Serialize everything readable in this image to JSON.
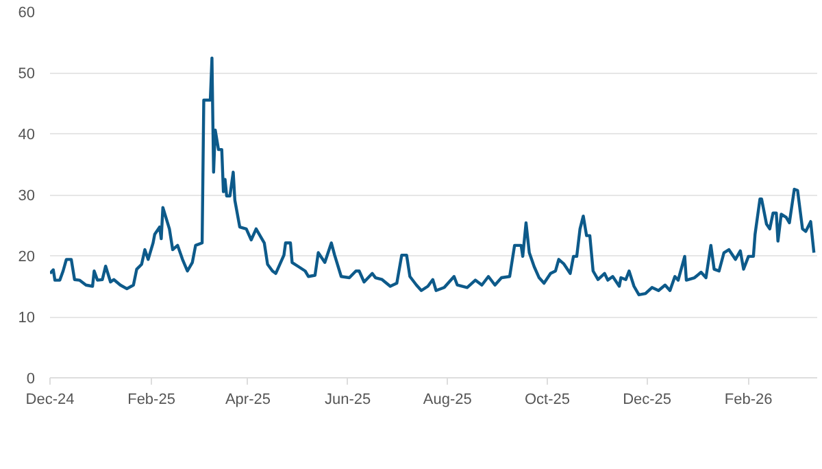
{
  "chart_data": {
    "type": "line",
    "x": [
      "2024-12-01",
      "2024-12-03",
      "2024-12-04",
      "2024-12-07",
      "2024-12-09",
      "2024-12-11",
      "2024-12-14",
      "2024-12-16",
      "2024-12-19",
      "2024-12-23",
      "2024-12-27",
      "2024-12-28",
      "2024-12-30",
      "2025-01-02",
      "2025-01-04",
      "2025-01-07",
      "2025-01-09",
      "2025-01-13",
      "2025-01-17",
      "2025-01-21",
      "2025-01-23",
      "2025-01-26",
      "2025-01-28",
      "2025-01-30",
      "2025-02-02",
      "2025-02-03",
      "2025-02-06",
      "2025-02-07",
      "2025-02-08",
      "2025-02-12",
      "2025-02-14",
      "2025-02-17",
      "2025-02-20",
      "2025-02-23",
      "2025-02-26",
      "2025-02-28",
      "2025-03-04",
      "2025-03-05",
      "2025-03-09",
      "2025-03-10",
      "2025-03-11",
      "2025-03-12",
      "2025-03-14",
      "2025-03-16",
      "2025-03-17",
      "2025-03-18",
      "2025-03-19",
      "2025-03-21",
      "2025-03-23",
      "2025-03-24",
      "2025-03-27",
      "2025-03-31",
      "2025-04-03",
      "2025-04-06",
      "2025-04-11",
      "2025-04-13",
      "2025-04-16",
      "2025-04-18",
      "2025-04-23",
      "2025-04-24",
      "2025-04-27",
      "2025-04-28",
      "2025-05-02",
      "2025-05-06",
      "2025-05-08",
      "2025-05-12",
      "2025-05-14",
      "2025-05-18",
      "2025-05-22",
      "2025-05-24",
      "2025-05-28",
      "2025-06-02",
      "2025-06-06",
      "2025-06-08",
      "2025-06-11",
      "2025-06-16",
      "2025-06-18",
      "2025-06-22",
      "2025-06-27",
      "2025-07-01",
      "2025-07-04",
      "2025-07-07",
      "2025-07-09",
      "2025-07-13",
      "2025-07-16",
      "2025-07-20",
      "2025-07-23",
      "2025-07-25",
      "2025-07-30",
      "2025-08-05",
      "2025-08-07",
      "2025-08-13",
      "2025-08-18",
      "2025-08-22",
      "2025-08-26",
      "2025-08-30",
      "2025-09-03",
      "2025-09-08",
      "2025-09-11",
      "2025-09-15",
      "2025-09-16",
      "2025-09-18",
      "2025-09-20",
      "2025-09-23",
      "2025-09-26",
      "2025-09-29",
      "2025-10-03",
      "2025-10-06",
      "2025-10-08",
      "2025-10-11",
      "2025-10-15",
      "2025-10-17",
      "2025-10-19",
      "2025-10-21",
      "2025-10-23",
      "2025-10-25",
      "2025-10-27",
      "2025-10-29",
      "2025-11-01",
      "2025-11-05",
      "2025-11-07",
      "2025-11-10",
      "2025-11-14",
      "2025-11-15",
      "2025-11-18",
      "2025-11-20",
      "2025-11-23",
      "2025-11-26",
      "2025-11-30",
      "2025-12-04",
      "2025-12-08",
      "2025-12-12",
      "2025-12-15",
      "2025-12-18",
      "2025-12-20",
      "2025-12-24",
      "2025-12-25",
      "2025-12-30",
      "2026-01-03",
      "2026-01-06",
      "2026-01-09",
      "2026-01-11",
      "2026-01-14",
      "2026-01-17",
      "2026-01-20",
      "2026-01-24",
      "2026-01-27",
      "2026-01-29",
      "2026-02-01",
      "2026-02-04",
      "2026-02-05",
      "2026-02-08",
      "2026-02-09",
      "2026-02-12",
      "2026-02-14",
      "2026-02-16",
      "2026-02-18",
      "2026-02-19",
      "2026-02-21",
      "2026-02-24",
      "2026-02-26",
      "2026-03-01",
      "2026-03-03",
      "2026-03-06",
      "2026-03-08",
      "2026-03-11",
      "2026-03-13"
    ],
    "series": [
      {
        "color": "#0d5a8a",
        "values": [
          17.1,
          17.7,
          16.0,
          16.0,
          17.5,
          19.4,
          19.4,
          16.1,
          16.0,
          15.2,
          15.0,
          17.5,
          16.0,
          16.1,
          18.3,
          15.7,
          16.1,
          15.2,
          14.6,
          15.2,
          17.8,
          18.6,
          21.0,
          19.4,
          22.1,
          23.5,
          24.7,
          22.8,
          27.9,
          24.4,
          21.0,
          21.7,
          19.4,
          17.5,
          18.9,
          21.7,
          22.1,
          45.5,
          45.5,
          52.4,
          33.7,
          40.6,
          37.4,
          37.4,
          30.5,
          32.5,
          29.8,
          29.8,
          33.7,
          29.1,
          24.7,
          24.4,
          22.6,
          24.4,
          22.1,
          18.6,
          17.5,
          17.1,
          20.1,
          22.1,
          22.1,
          18.9,
          18.2,
          17.5,
          16.6,
          16.8,
          20.5,
          18.9,
          22.1,
          20.1,
          16.6,
          16.4,
          17.5,
          17.5,
          15.7,
          17.1,
          16.4,
          16.1,
          15.0,
          15.5,
          20.1,
          20.1,
          16.6,
          15.2,
          14.3,
          15.0,
          16.1,
          14.3,
          14.8,
          16.6,
          15.2,
          14.8,
          16.0,
          15.2,
          16.6,
          15.2,
          16.4,
          16.6,
          21.7,
          21.7,
          19.9,
          25.4,
          20.5,
          18.2,
          16.4,
          15.5,
          17.1,
          17.5,
          19.4,
          18.7,
          17.1,
          19.9,
          19.9,
          24.4,
          26.5,
          23.3,
          23.3,
          17.5,
          16.1,
          17.1,
          16.0,
          16.6,
          15.0,
          16.4,
          16.1,
          17.5,
          15.0,
          13.6,
          13.8,
          14.8,
          14.3,
          15.2,
          14.3,
          16.6,
          16.0,
          19.9,
          16.0,
          16.4,
          17.3,
          16.4,
          21.7,
          17.8,
          17.5,
          20.5,
          21.0,
          19.4,
          20.8,
          17.8,
          19.9,
          19.9,
          23.5,
          29.3,
          29.3,
          25.2,
          24.4,
          27.0,
          27.0,
          22.4,
          26.8,
          26.3,
          25.4,
          30.9,
          30.7,
          24.4,
          24.0,
          25.6,
          20.5
        ]
      }
    ],
    "xlim": [
      "2024-12-01",
      "2026-03-15"
    ],
    "xticks": [
      {
        "value": "2024-12-01",
        "label": "Dec-24"
      },
      {
        "value": "2025-02-01",
        "label": "Feb-25"
      },
      {
        "value": "2025-04-01",
        "label": "Apr-25"
      },
      {
        "value": "2025-06-01",
        "label": "Jun-25"
      },
      {
        "value": "2025-08-01",
        "label": "Aug-25"
      },
      {
        "value": "2025-10-01",
        "label": "Oct-25"
      },
      {
        "value": "2025-12-01",
        "label": "Dec-25"
      },
      {
        "value": "2026-02-01",
        "label": "Feb-26"
      }
    ],
    "ylim": [
      0,
      60
    ],
    "yticks": [
      0,
      10,
      20,
      30,
      40,
      50,
      60
    ],
    "grid": "y",
    "marker": "none",
    "line_style": "solid"
  }
}
